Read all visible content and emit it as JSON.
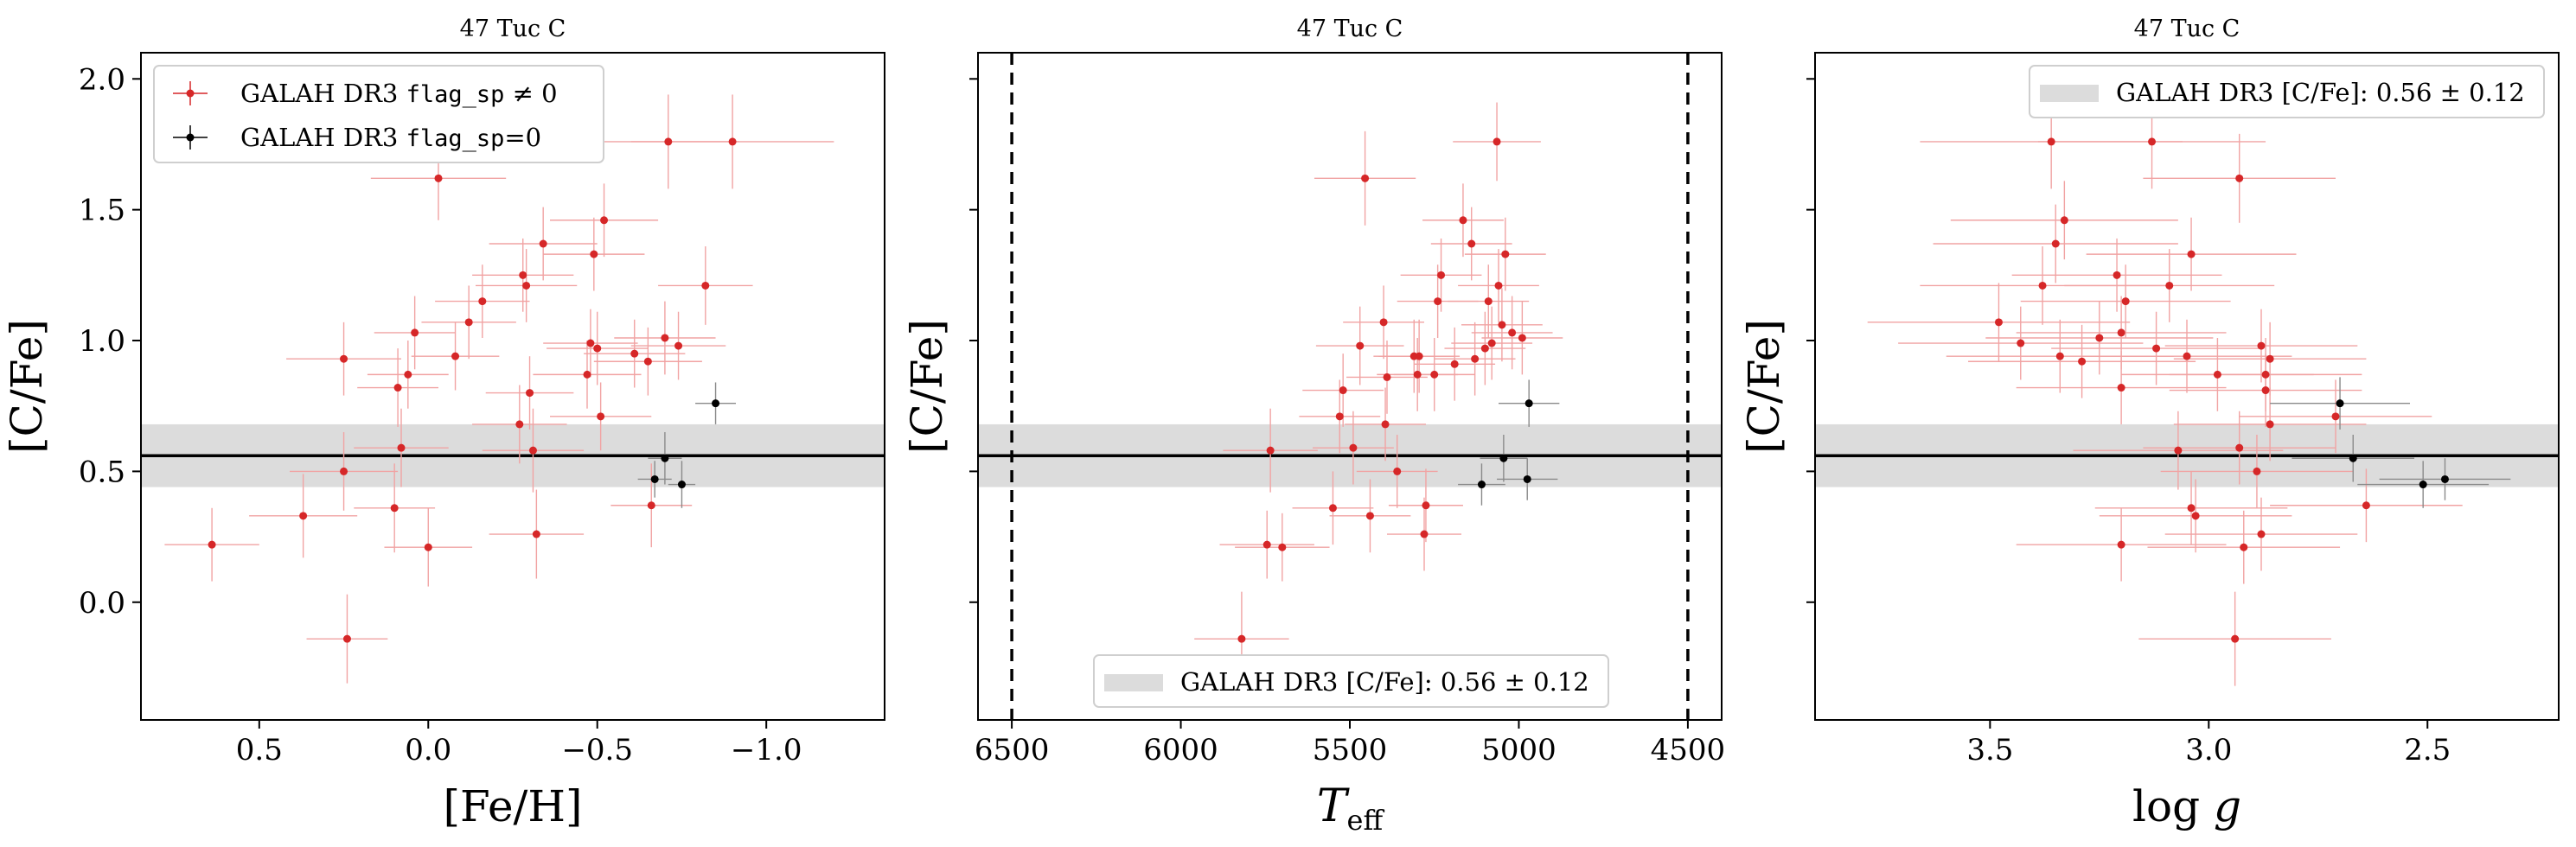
{
  "colors": {
    "flagged": "#d62728",
    "flagged_err": "#f1a3a3",
    "good": "#000000",
    "good_err": "#8a8a8a",
    "band": "#dcdcdc",
    "mean_line": "#000000"
  },
  "legend_texts": {
    "flagged_prefix": "GALAH DR3 ",
    "flagged_code": "flag_sp",
    "flagged_suffix": " ≠ 0",
    "good_prefix": "GALAH DR3 ",
    "good_code": "flag_sp",
    "good_suffix": "=0",
    "band": "GALAH DR3 [C/Fe]: 0.56 ± 0.12"
  },
  "chart_data": [
    {
      "type": "scatter",
      "title": "47 Tuc C",
      "xlabel": "[Fe/H]",
      "ylabel": "[C/Fe]",
      "xlim": [
        0.85,
        -1.35
      ],
      "ylim": [
        -0.45,
        2.1
      ],
      "xticks": [
        0.5,
        0.0,
        -0.5,
        -1.0
      ],
      "xtick_labels": [
        "0.5",
        "0.0",
        "−0.5",
        "−1.0"
      ],
      "yticks": [
        0.0,
        0.5,
        1.0,
        1.5,
        2.0
      ],
      "ytick_labels": [
        "0.0",
        "0.5",
        "1.0",
        "1.5",
        "2.0"
      ],
      "band": {
        "center": 0.56,
        "halfwidth": 0.12
      },
      "legend": "top-left",
      "series": [
        {
          "name": "GALAH DR3 flag_sp ≠ 0",
          "points": [
            {
              "x": 0.64,
              "y": 0.22,
              "ex": 0.14,
              "ey": 0.14
            },
            {
              "x": 0.37,
              "y": 0.33,
              "ex": 0.16,
              "ey": 0.16
            },
            {
              "x": 0.25,
              "y": 0.93,
              "ex": 0.17,
              "ey": 0.14
            },
            {
              "x": 0.25,
              "y": 0.5,
              "ex": 0.16,
              "ey": 0.15
            },
            {
              "x": 0.24,
              "y": -0.14,
              "ex": 0.12,
              "ey": 0.17
            },
            {
              "x": 0.1,
              "y": 0.36,
              "ex": 0.12,
              "ey": 0.17
            },
            {
              "x": 0.09,
              "y": 0.82,
              "ex": 0.12,
              "ey": 0.15
            },
            {
              "x": 0.08,
              "y": 0.59,
              "ex": 0.14,
              "ey": 0.15
            },
            {
              "x": 0.06,
              "y": 0.87,
              "ex": 0.12,
              "ey": 0.13
            },
            {
              "x": 0.04,
              "y": 1.03,
              "ex": 0.12,
              "ey": 0.14
            },
            {
              "x": 0.0,
              "y": 0.21,
              "ex": 0.13,
              "ey": 0.15
            },
            {
              "x": -0.03,
              "y": 1.62,
              "ex": 0.2,
              "ey": 0.16
            },
            {
              "x": -0.08,
              "y": 0.94,
              "ex": 0.13,
              "ey": 0.13
            },
            {
              "x": -0.12,
              "y": 1.07,
              "ex": 0.14,
              "ey": 0.14
            },
            {
              "x": -0.16,
              "y": 1.15,
              "ex": 0.14,
              "ey": 0.14
            },
            {
              "x": -0.27,
              "y": 0.68,
              "ex": 0.14,
              "ey": 0.15
            },
            {
              "x": -0.28,
              "y": 1.25,
              "ex": 0.15,
              "ey": 0.14
            },
            {
              "x": -0.29,
              "y": 1.21,
              "ex": 0.15,
              "ey": 0.14
            },
            {
              "x": -0.3,
              "y": 0.8,
              "ex": 0.13,
              "ey": 0.14
            },
            {
              "x": -0.31,
              "y": 0.58,
              "ex": 0.15,
              "ey": 0.16
            },
            {
              "x": -0.32,
              "y": 0.26,
              "ex": 0.14,
              "ey": 0.17
            },
            {
              "x": -0.34,
              "y": 1.37,
              "ex": 0.16,
              "ey": 0.14
            },
            {
              "x": -0.47,
              "y": 0.87,
              "ex": 0.16,
              "ey": 0.13
            },
            {
              "x": -0.48,
              "y": 0.99,
              "ex": 0.14,
              "ey": 0.13
            },
            {
              "x": -0.49,
              "y": 1.33,
              "ex": 0.15,
              "ey": 0.14
            },
            {
              "x": -0.5,
              "y": 0.97,
              "ex": 0.15,
              "ey": 0.14
            },
            {
              "x": -0.51,
              "y": 0.71,
              "ex": 0.15,
              "ey": 0.13
            },
            {
              "x": -0.52,
              "y": 1.46,
              "ex": 0.16,
              "ey": 0.14
            },
            {
              "x": -0.61,
              "y": 0.95,
              "ex": 0.15,
              "ey": 0.13
            },
            {
              "x": -0.65,
              "y": 0.92,
              "ex": 0.16,
              "ey": 0.13
            },
            {
              "x": -0.66,
              "y": 0.37,
              "ex": 0.12,
              "ey": 0.16
            },
            {
              "x": -0.7,
              "y": 1.01,
              "ex": 0.15,
              "ey": 0.14
            },
            {
              "x": -0.71,
              "y": 1.76,
              "ex": 0.21,
              "ey": 0.18
            },
            {
              "x": -0.74,
              "y": 0.98,
              "ex": 0.14,
              "ey": 0.13
            },
            {
              "x": -0.82,
              "y": 1.21,
              "ex": 0.14,
              "ey": 0.15
            },
            {
              "x": -0.9,
              "y": 1.76,
              "ex": 0.3,
              "ey": 0.18
            }
          ]
        },
        {
          "name": "GALAH DR3 flag_sp=0",
          "points": [
            {
              "x": -0.67,
              "y": 0.47,
              "ex": 0.05,
              "ey": 0.07
            },
            {
              "x": -0.7,
              "y": 0.55,
              "ex": 0.05,
              "ey": 0.1
            },
            {
              "x": -0.75,
              "y": 0.45,
              "ex": 0.04,
              "ey": 0.09
            },
            {
              "x": -0.85,
              "y": 0.76,
              "ex": 0.06,
              "ey": 0.08
            }
          ]
        }
      ]
    },
    {
      "type": "scatter",
      "title": "47 Tuc C",
      "xlabel": "T_eff",
      "ylabel": "[C/Fe]",
      "xlim": [
        6600,
        4400
      ],
      "ylim": [
        -0.45,
        2.1
      ],
      "xticks": [
        6500,
        6000,
        5500,
        5000,
        4500
      ],
      "xtick_labels": [
        "6500",
        "6000",
        "5500",
        "5000",
        "4500"
      ],
      "yticks": [
        0.0,
        0.5,
        1.0,
        1.5,
        2.0
      ],
      "ytick_labels": [
        "",
        "",
        "",
        "",
        ""
      ],
      "vlines": [
        6500,
        4500
      ],
      "band": {
        "center": 0.56,
        "halfwidth": 0.12
      },
      "legend": "bottom-center",
      "series": [
        {
          "name": "GALAH DR3 flag_sp ≠ 0",
          "points": [
            {
              "x": 5820,
              "y": -0.14,
              "ex": 140,
              "ey": 0.18
            },
            {
              "x": 5745,
              "y": 0.22,
              "ex": 140,
              "ey": 0.13
            },
            {
              "x": 5735,
              "y": 0.58,
              "ex": 140,
              "ey": 0.16
            },
            {
              "x": 5700,
              "y": 0.21,
              "ex": 140,
              "ey": 0.13
            },
            {
              "x": 5550,
              "y": 0.36,
              "ex": 120,
              "ey": 0.14
            },
            {
              "x": 5530,
              "y": 0.71,
              "ex": 120,
              "ey": 0.14
            },
            {
              "x": 5520,
              "y": 0.81,
              "ex": 120,
              "ey": 0.14
            },
            {
              "x": 5490,
              "y": 0.59,
              "ex": 120,
              "ey": 0.14
            },
            {
              "x": 5470,
              "y": 0.98,
              "ex": 130,
              "ey": 0.15
            },
            {
              "x": 5455,
              "y": 1.62,
              "ex": 150,
              "ey": 0.18
            },
            {
              "x": 5440,
              "y": 0.33,
              "ex": 120,
              "ey": 0.14
            },
            {
              "x": 5400,
              "y": 1.07,
              "ex": 120,
              "ey": 0.14
            },
            {
              "x": 5395,
              "y": 0.68,
              "ex": 120,
              "ey": 0.14
            },
            {
              "x": 5390,
              "y": 0.86,
              "ex": 120,
              "ey": 0.14
            },
            {
              "x": 5360,
              "y": 0.5,
              "ex": 120,
              "ey": 0.14
            },
            {
              "x": 5310,
              "y": 0.94,
              "ex": 120,
              "ey": 0.14
            },
            {
              "x": 5300,
              "y": 0.87,
              "ex": 120,
              "ey": 0.14
            },
            {
              "x": 5295,
              "y": 0.94,
              "ex": 120,
              "ey": 0.14
            },
            {
              "x": 5280,
              "y": 0.26,
              "ex": 110,
              "ey": 0.14
            },
            {
              "x": 5275,
              "y": 0.37,
              "ex": 110,
              "ey": 0.14
            },
            {
              "x": 5250,
              "y": 0.87,
              "ex": 120,
              "ey": 0.14
            },
            {
              "x": 5240,
              "y": 1.15,
              "ex": 120,
              "ey": 0.14
            },
            {
              "x": 5230,
              "y": 1.25,
              "ex": 120,
              "ey": 0.14
            },
            {
              "x": 5190,
              "y": 0.91,
              "ex": 120,
              "ey": 0.14
            },
            {
              "x": 5165,
              "y": 1.46,
              "ex": 120,
              "ey": 0.14
            },
            {
              "x": 5140,
              "y": 1.37,
              "ex": 120,
              "ey": 0.14
            },
            {
              "x": 5130,
              "y": 0.93,
              "ex": 120,
              "ey": 0.14
            },
            {
              "x": 5100,
              "y": 0.97,
              "ex": 120,
              "ey": 0.14
            },
            {
              "x": 5090,
              "y": 1.15,
              "ex": 120,
              "ey": 0.14
            },
            {
              "x": 5080,
              "y": 0.99,
              "ex": 120,
              "ey": 0.14
            },
            {
              "x": 5065,
              "y": 1.76,
              "ex": 130,
              "ey": 0.15
            },
            {
              "x": 5060,
              "y": 1.21,
              "ex": 120,
              "ey": 0.14
            },
            {
              "x": 5050,
              "y": 1.06,
              "ex": 120,
              "ey": 0.14
            },
            {
              "x": 5040,
              "y": 1.33,
              "ex": 120,
              "ey": 0.14
            },
            {
              "x": 5020,
              "y": 1.03,
              "ex": 120,
              "ey": 0.14
            },
            {
              "x": 4990,
              "y": 1.01,
              "ex": 120,
              "ey": 0.14
            }
          ]
        },
        {
          "name": "GALAH DR3 flag_sp=0",
          "points": [
            {
              "x": 5110,
              "y": 0.45,
              "ex": 70,
              "ey": 0.08
            },
            {
              "x": 5045,
              "y": 0.55,
              "ex": 70,
              "ey": 0.09
            },
            {
              "x": 4975,
              "y": 0.47,
              "ex": 90,
              "ey": 0.08
            },
            {
              "x": 4970,
              "y": 0.76,
              "ex": 90,
              "ey": 0.09
            }
          ]
        }
      ]
    },
    {
      "type": "scatter",
      "title": "47 Tuc C",
      "xlabel": "log g",
      "ylabel": "[C/Fe]",
      "xlim": [
        3.9,
        2.2
      ],
      "ylim": [
        -0.45,
        2.1
      ],
      "xticks": [
        3.5,
        3.0,
        2.5
      ],
      "xtick_labels": [
        "3.5",
        "3.0",
        "2.5"
      ],
      "yticks": [
        0.0,
        0.5,
        1.0,
        1.5,
        2.0
      ],
      "ytick_labels": [
        "",
        "",
        "",
        "",
        ""
      ],
      "band": {
        "center": 0.56,
        "halfwidth": 0.12
      },
      "legend": "top-right",
      "series": [
        {
          "name": "GALAH DR3 flag_sp ≠ 0",
          "points": [
            {
              "x": 3.48,
              "y": 1.07,
              "ex": 0.3,
              "ey": 0.15
            },
            {
              "x": 3.43,
              "y": 0.99,
              "ex": 0.28,
              "ey": 0.14
            },
            {
              "x": 3.38,
              "y": 1.21,
              "ex": 0.28,
              "ey": 0.15
            },
            {
              "x": 3.36,
              "y": 1.76,
              "ex": 0.3,
              "ey": 0.18
            },
            {
              "x": 3.35,
              "y": 1.37,
              "ex": 0.28,
              "ey": 0.15
            },
            {
              "x": 3.34,
              "y": 0.94,
              "ex": 0.26,
              "ey": 0.14
            },
            {
              "x": 3.33,
              "y": 1.46,
              "ex": 0.26,
              "ey": 0.15
            },
            {
              "x": 3.29,
              "y": 0.92,
              "ex": 0.26,
              "ey": 0.14
            },
            {
              "x": 3.25,
              "y": 1.01,
              "ex": 0.26,
              "ey": 0.14
            },
            {
              "x": 3.21,
              "y": 1.25,
              "ex": 0.24,
              "ey": 0.14
            },
            {
              "x": 3.2,
              "y": 1.03,
              "ex": 0.24,
              "ey": 0.14
            },
            {
              "x": 3.19,
              "y": 1.15,
              "ex": 0.24,
              "ey": 0.14
            },
            {
              "x": 3.2,
              "y": 0.82,
              "ex": 0.24,
              "ey": 0.14
            },
            {
              "x": 3.2,
              "y": 0.22,
              "ex": 0.24,
              "ey": 0.14
            },
            {
              "x": 3.13,
              "y": 1.76,
              "ex": 0.26,
              "ey": 0.18
            },
            {
              "x": 3.12,
              "y": 0.97,
              "ex": 0.24,
              "ey": 0.14
            },
            {
              "x": 3.09,
              "y": 1.21,
              "ex": 0.24,
              "ey": 0.14
            },
            {
              "x": 3.07,
              "y": 0.58,
              "ex": 0.24,
              "ey": 0.15
            },
            {
              "x": 3.05,
              "y": 0.94,
              "ex": 0.24,
              "ey": 0.14
            },
            {
              "x": 3.04,
              "y": 1.33,
              "ex": 0.24,
              "ey": 0.14
            },
            {
              "x": 3.04,
              "y": 0.36,
              "ex": 0.22,
              "ey": 0.14
            },
            {
              "x": 3.03,
              "y": 0.33,
              "ex": 0.22,
              "ey": 0.14
            },
            {
              "x": 2.98,
              "y": 0.87,
              "ex": 0.22,
              "ey": 0.14
            },
            {
              "x": 2.94,
              "y": -0.14,
              "ex": 0.22,
              "ey": 0.18
            },
            {
              "x": 2.93,
              "y": 0.59,
              "ex": 0.22,
              "ey": 0.14
            },
            {
              "x": 2.93,
              "y": 1.62,
              "ex": 0.22,
              "ey": 0.17
            },
            {
              "x": 2.92,
              "y": 0.21,
              "ex": 0.22,
              "ey": 0.14
            },
            {
              "x": 2.89,
              "y": 0.5,
              "ex": 0.22,
              "ey": 0.14
            },
            {
              "x": 2.88,
              "y": 0.98,
              "ex": 0.22,
              "ey": 0.14
            },
            {
              "x": 2.88,
              "y": 0.26,
              "ex": 0.22,
              "ey": 0.14
            },
            {
              "x": 2.87,
              "y": 0.81,
              "ex": 0.22,
              "ey": 0.14
            },
            {
              "x": 2.87,
              "y": 0.87,
              "ex": 0.22,
              "ey": 0.14
            },
            {
              "x": 2.86,
              "y": 0.93,
              "ex": 0.22,
              "ey": 0.14
            },
            {
              "x": 2.86,
              "y": 0.68,
              "ex": 0.22,
              "ey": 0.14
            },
            {
              "x": 2.71,
              "y": 0.71,
              "ex": 0.22,
              "ey": 0.14
            },
            {
              "x": 2.64,
              "y": 0.37,
              "ex": 0.22,
              "ey": 0.14
            }
          ]
        },
        {
          "name": "GALAH DR3 flag_sp=0",
          "points": [
            {
              "x": 2.7,
              "y": 0.76,
              "ex": 0.16,
              "ey": 0.1
            },
            {
              "x": 2.67,
              "y": 0.55,
              "ex": 0.14,
              "ey": 0.09
            },
            {
              "x": 2.51,
              "y": 0.45,
              "ex": 0.15,
              "ey": 0.09
            },
            {
              "x": 2.46,
              "y": 0.47,
              "ex": 0.15,
              "ey": 0.08
            }
          ]
        }
      ]
    }
  ]
}
